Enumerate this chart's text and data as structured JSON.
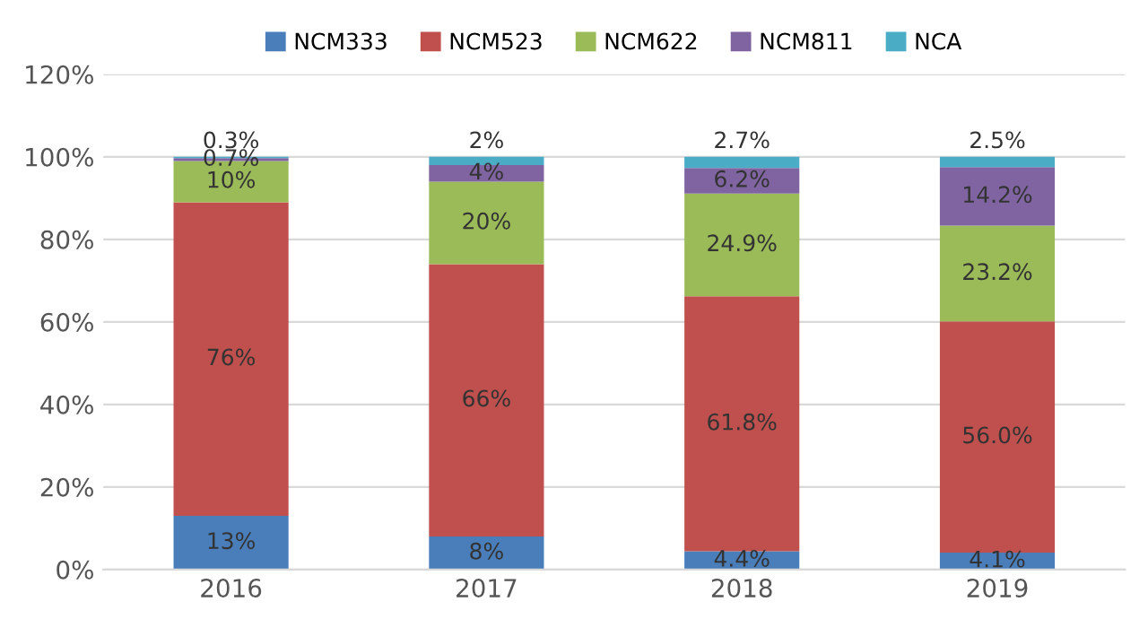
{
  "chart_data": {
    "type": "bar",
    "stacked": true,
    "categories": [
      "2016",
      "2017",
      "2018",
      "2019"
    ],
    "series": [
      {
        "name": "NCM333",
        "color": "#4a7ebb",
        "values": [
          13,
          8,
          4.4,
          4.1
        ],
        "value_labels": [
          "13%",
          "8%",
          "4.4%",
          "4.1%"
        ]
      },
      {
        "name": "NCM523",
        "color": "#c0504d",
        "values": [
          76,
          66,
          61.8,
          56.0
        ],
        "value_labels": [
          "76%",
          "66%",
          "61.8%",
          "56.0%"
        ]
      },
      {
        "name": "NCM622",
        "color": "#9bbb59",
        "values": [
          10,
          20,
          24.9,
          23.2
        ],
        "value_labels": [
          "10%",
          "20%",
          "24.9%",
          "23.2%"
        ]
      },
      {
        "name": "NCM811",
        "color": "#8064a2",
        "values": [
          0.7,
          4,
          6.2,
          14.2
        ],
        "value_labels": [
          "0.7%",
          "4%",
          "6.2%",
          "14.2%"
        ]
      },
      {
        "name": "NCA",
        "color": "#4bacc6",
        "values": [
          0.3,
          2,
          2.7,
          2.5
        ],
        "value_labels": [
          "0.3%",
          "2%",
          "2.7%",
          "2.5%"
        ]
      }
    ],
    "ylim": [
      0,
      120
    ],
    "yticks": [
      {
        "value": 0,
        "label": "0%"
      },
      {
        "value": 20,
        "label": "20%"
      },
      {
        "value": 40,
        "label": "40%"
      },
      {
        "value": 60,
        "label": "60%"
      },
      {
        "value": 80,
        "label": "80%"
      },
      {
        "value": 100,
        "label": "100%"
      },
      {
        "value": 120,
        "label": "120%"
      }
    ],
    "grid": "y",
    "legend": "top"
  }
}
